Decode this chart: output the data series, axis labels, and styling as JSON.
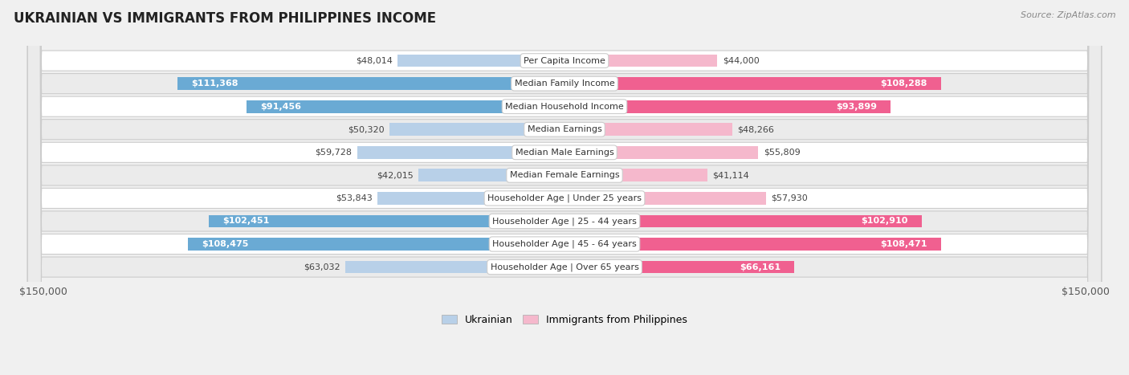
{
  "title": "UKRAINIAN VS IMMIGRANTS FROM PHILIPPINES INCOME",
  "source": "Source: ZipAtlas.com",
  "categories": [
    "Per Capita Income",
    "Median Family Income",
    "Median Household Income",
    "Median Earnings",
    "Median Male Earnings",
    "Median Female Earnings",
    "Householder Age | Under 25 years",
    "Householder Age | 25 - 44 years",
    "Householder Age | 45 - 64 years",
    "Householder Age | Over 65 years"
  ],
  "ukrainian_values": [
    48014,
    111368,
    91456,
    50320,
    59728,
    42015,
    53843,
    102451,
    108475,
    63032
  ],
  "philippines_values": [
    44000,
    108288,
    93899,
    48266,
    55809,
    41114,
    57930,
    102910,
    108471,
    66161
  ],
  "ukrainian_labels": [
    "$48,014",
    "$111,368",
    "$91,456",
    "$50,320",
    "$59,728",
    "$42,015",
    "$53,843",
    "$102,451",
    "$108,475",
    "$63,032"
  ],
  "philippines_labels": [
    "$44,000",
    "$108,288",
    "$93,899",
    "$48,266",
    "$55,809",
    "$41,114",
    "$57,930",
    "$102,910",
    "$108,471",
    "$66,161"
  ],
  "max_value": 150000,
  "ukrainian_color_light": "#b8d0e8",
  "ukrainian_color_dark": "#6aaad4",
  "philippines_color_light": "#f5b8cc",
  "philippines_color_dark": "#f06090",
  "background_color": "#f0f0f0",
  "row_bg_white": "#ffffff",
  "row_bg_gray": "#e8e8e8",
  "label_inside_color": "#ffffff",
  "label_outside_color": "#444444",
  "label_inside_threshold": 65000,
  "bar_height": 0.55,
  "legend_ukrainian": "Ukrainian",
  "legend_philippines": "Immigrants from Philippines",
  "x_tick_left": "$150,000",
  "x_tick_right": "$150,000",
  "title_fontsize": 12,
  "source_fontsize": 8,
  "label_fontsize": 8,
  "cat_fontsize": 8
}
